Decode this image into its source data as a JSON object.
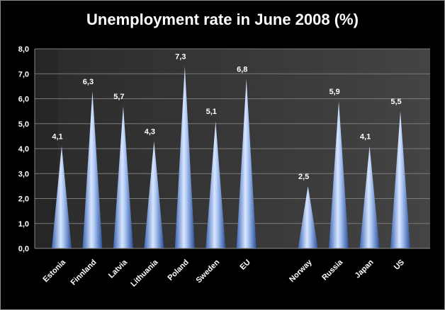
{
  "chart_data": {
    "type": "bar",
    "title": "Unemployment rate in June 2008 (%)",
    "categories": [
      "Estonia",
      "Finnland",
      "Latvia",
      "Lithuania",
      "Poland",
      "Sweden",
      "EU",
      "",
      "Norway",
      "Russia",
      "Japan",
      "US"
    ],
    "values": [
      4.1,
      6.3,
      5.7,
      4.3,
      7.3,
      5.1,
      6.8,
      null,
      2.5,
      5.9,
      4.1,
      5.5
    ],
    "value_labels": [
      "4,1",
      "6,3",
      "5,7",
      "4,3",
      "7,3",
      "5,1",
      "6,8",
      "",
      "2,5",
      "5,9",
      "4,1",
      "5,5"
    ],
    "ylim": [
      0,
      8
    ],
    "yticks": [
      "0,0",
      "1,0",
      "2,0",
      "3,0",
      "4,0",
      "5,0",
      "6,0",
      "7,0",
      "8,0"
    ],
    "xlabel": "",
    "ylabel": "",
    "grid": true,
    "legend": "none",
    "colors": {
      "background": "#000000",
      "plot_area": "#3a3a3a",
      "gridline": "#7a7a7a",
      "bar_light": "#cfe0ff",
      "bar_dark": "#2f5aa8",
      "text": "#ffffff"
    }
  }
}
